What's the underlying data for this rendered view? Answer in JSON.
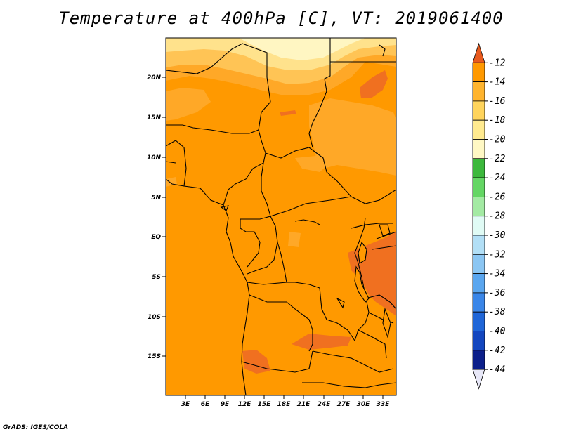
{
  "title": "Temperature at 400hPa [C], VT: 2019061400",
  "credit": "GrADS: IGES/COLA",
  "map": {
    "lat_ticks": [
      "20N",
      "15N",
      "10N",
      "5N",
      "EQ",
      "5S",
      "10S",
      "15S"
    ],
    "lon_ticks": [
      "3E",
      "6E",
      "9E",
      "12E",
      "15E",
      "18E",
      "21E",
      "24E",
      "27E",
      "30E",
      "33E"
    ],
    "field_colors": {
      "warm_-14": "#ff9900",
      "band_-16": "#ffa827",
      "band_-18": "#ffc455",
      "band_-20": "#ffe28c",
      "band_-22": "#fff6c2",
      "hot_-12": "#f07020",
      "border": "#000000"
    }
  },
  "colorbar": {
    "labels": [
      "-12",
      "-14",
      "-16",
      "-18",
      "-20",
      "-22",
      "-24",
      "-26",
      "-28",
      "-30",
      "-32",
      "-34",
      "-36",
      "-38",
      "-40",
      "-42",
      "-44"
    ],
    "colors": [
      "#e85a1e",
      "#ff9900",
      "#ffb42e",
      "#ffd45c",
      "#ffea8f",
      "#fff8c4",
      "#3cb83c",
      "#64d664",
      "#a3eaa3",
      "#e0fbf5",
      "#b2dff6",
      "#8bc6f3",
      "#5aa6ef",
      "#3a86e8",
      "#1f66d8",
      "#1346bf",
      "#0c1f8a",
      "#e7e7f7"
    ]
  }
}
